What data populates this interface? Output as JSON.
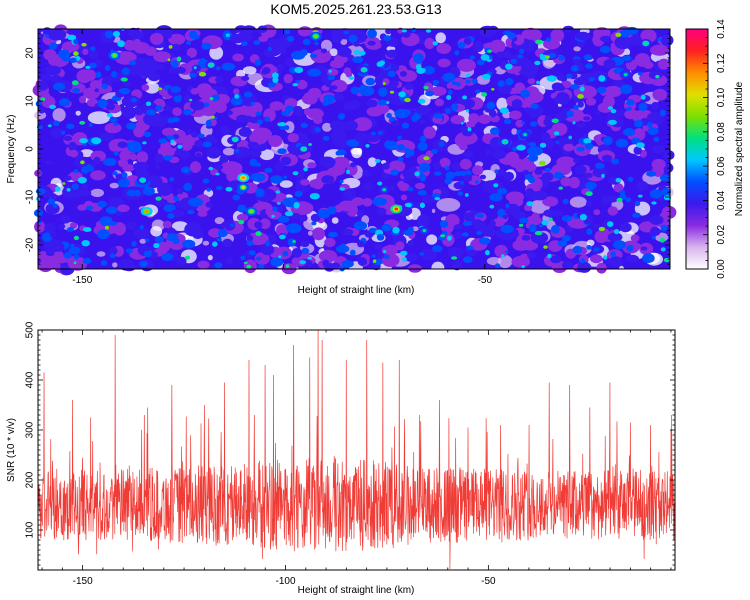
{
  "title": "KOM5.2025.261.23.53.G13",
  "chart_data": [
    {
      "type": "heatmap",
      "title": "KOM5.2025.261.23.53.G13",
      "xlabel": "Height of straight line (km)",
      "ylabel": "Frequency (Hz)",
      "xlim": [
        -161,
        -4
      ],
      "ylim": [
        -25,
        25
      ],
      "x_ticks": [
        -150,
        -100,
        -50
      ],
      "x_tick_labels": [
        "-150",
        "",
        "-50"
      ],
      "y_ticks": [
        -20,
        -10,
        0,
        10,
        20
      ],
      "y_tick_labels": [
        "-20",
        "-10",
        "0",
        "10",
        "20"
      ],
      "grid": false,
      "colorbar": {
        "label": "Normalized spectral amplitude",
        "range": [
          0,
          0.14
        ],
        "ticks": [
          0,
          0.02,
          0.04,
          0.06,
          0.08,
          0.1,
          0.12,
          0.14
        ],
        "tick_labels": [
          "0.00",
          "0.02",
          "0.04",
          "0.06",
          "0.08",
          "0.10",
          "0.12",
          "0.14"
        ],
        "colors": [
          "#ffffff",
          "#d8b4ee",
          "#8a2be2",
          "#3a1aee",
          "#0050ff",
          "#00c8ff",
          "#00e080",
          "#7ce000",
          "#e0e000",
          "#ff8c00",
          "#ff2020",
          "#ff0080"
        ]
      },
      "hotspots": [
        {
          "x": -142,
          "f": 19.5,
          "v": 0.09
        },
        {
          "x": -135,
          "f": -6.5,
          "v": 0.08
        },
        {
          "x": -134,
          "f": -13,
          "v": 0.11
        },
        {
          "x": -118,
          "f": 17.5,
          "v": 0.08
        },
        {
          "x": -112,
          "f": 2,
          "v": 0.08
        },
        {
          "x": -110,
          "f": -6,
          "v": 0.12
        },
        {
          "x": -110,
          "f": -8,
          "v": 0.1
        },
        {
          "x": -108,
          "f": -13,
          "v": 0.09
        },
        {
          "x": -95,
          "f": 0,
          "v": 0.08
        },
        {
          "x": -92,
          "f": 23.5,
          "v": 0.09
        },
        {
          "x": -80,
          "f": 16.5,
          "v": 0.08
        },
        {
          "x": -75,
          "f": -8.5,
          "v": 0.07
        },
        {
          "x": -72,
          "f": -12.5,
          "v": 0.13
        },
        {
          "x": -65,
          "f": -17,
          "v": 0.07
        },
        {
          "x": -45,
          "f": 1.5,
          "v": 0.08
        },
        {
          "x": -40,
          "f": 3,
          "v": 0.07
        },
        {
          "x": -15,
          "f": 15.5,
          "v": 0.07
        },
        {
          "x": -10,
          "f": 22,
          "v": 0.08
        }
      ]
    },
    {
      "type": "line",
      "xlabel": "Height of straight line (km)",
      "ylabel": "SNR (10 * v/v)",
      "xlim": [
        -161,
        -4
      ],
      "ylim": [
        20,
        500
      ],
      "x_ticks": [
        -150,
        -100,
        -50
      ],
      "x_tick_labels": [
        "-150",
        "-100",
        "-50"
      ],
      "y_ticks": [
        100,
        200,
        300,
        400,
        500
      ],
      "y_tick_labels": [
        "100",
        "200",
        "300",
        "400",
        "500"
      ],
      "grid": false,
      "series": [
        {
          "name": "SNR",
          "color": "#f03c37",
          "baseline": 150,
          "spread": 70,
          "peaks": [
            {
              "x": -159.5,
              "y": 415
            },
            {
              "x": -152.5,
              "y": 360
            },
            {
              "x": -148,
              "y": 325
            },
            {
              "x": -142,
              "y": 490
            },
            {
              "x": -134,
              "y": 345
            },
            {
              "x": -128,
              "y": 390
            },
            {
              "x": -120,
              "y": 350
            },
            {
              "x": -115,
              "y": 395
            },
            {
              "x": -109,
              "y": 440
            },
            {
              "x": -105,
              "y": 430
            },
            {
              "x": -103,
              "y": 410
            },
            {
              "x": -98,
              "y": 470
            },
            {
              "x": -94,
              "y": 445
            },
            {
              "x": -92,
              "y": 500
            },
            {
              "x": -91,
              "y": 480
            },
            {
              "x": -85,
              "y": 440
            },
            {
              "x": -80,
              "y": 480
            },
            {
              "x": -76,
              "y": 435
            },
            {
              "x": -72,
              "y": 440
            },
            {
              "x": -67,
              "y": 330
            },
            {
              "x": -62,
              "y": 360
            },
            {
              "x": -55,
              "y": 305
            },
            {
              "x": -47,
              "y": 310
            },
            {
              "x": -40,
              "y": 310
            },
            {
              "x": -35,
              "y": 395
            },
            {
              "x": -30,
              "y": 390
            },
            {
              "x": -25,
              "y": 345
            },
            {
              "x": -20,
              "y": 395
            },
            {
              "x": -15,
              "y": 315
            },
            {
              "x": -10,
              "y": 310
            },
            {
              "x": -5,
              "y": 300
            }
          ]
        }
      ]
    }
  ]
}
